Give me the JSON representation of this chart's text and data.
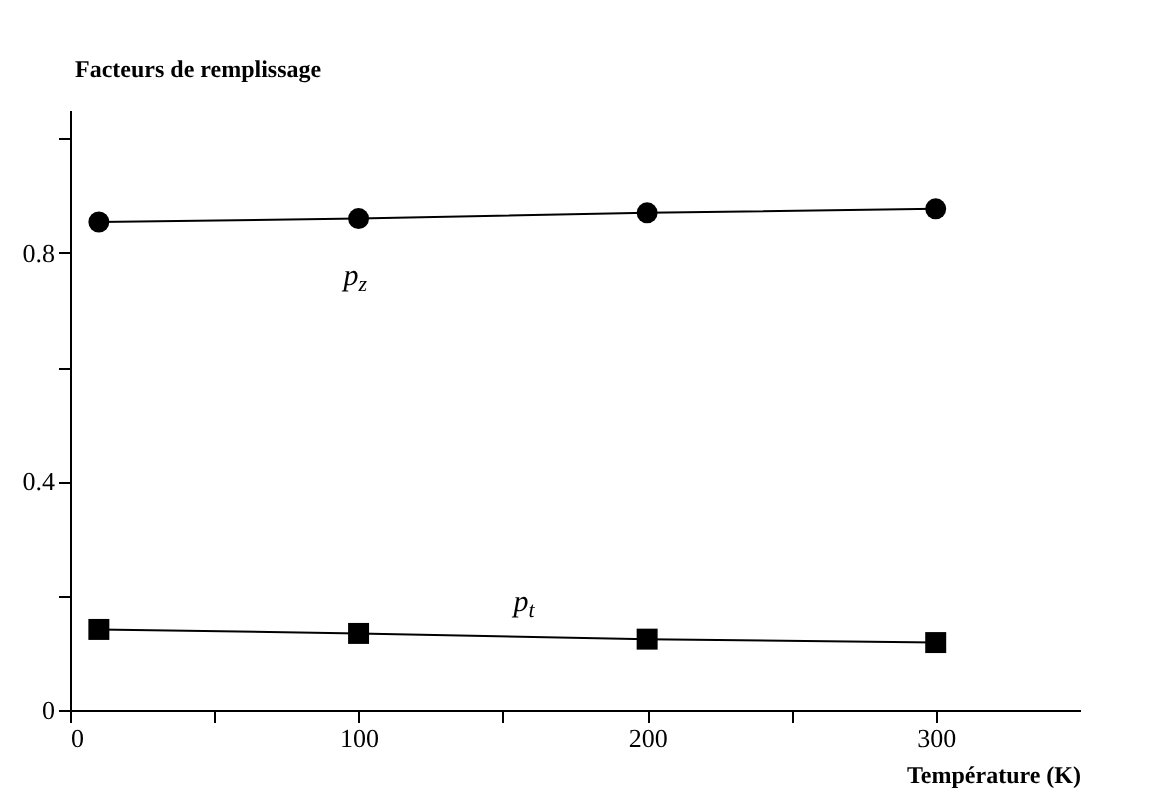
{
  "chart_data": {
    "type": "line",
    "xlabel": "Température (K)",
    "ylabel": "Facteurs de remplissage",
    "x": [
      10,
      100,
      200,
      300
    ],
    "series": [
      {
        "name": "p$_{z}$",
        "color": "#000000",
        "marker": "circle",
        "values": [
          0.854,
          0.86,
          0.87,
          0.877
        ]
      },
      {
        "name": "p$_{t}$",
        "color": "#000000",
        "marker": "square",
        "values": [
          0.141,
          0.134,
          0.124,
          0.118
        ]
      }
    ],
    "xlim": [
      0,
      350
    ],
    "ylim": [
      0,
      1.05
    ],
    "xticks": [
      0,
      {
        "value": 50,
        "label": null
      },
      100,
      {
        "value": 150,
        "label": null
      },
      200,
      {
        "value": 250,
        "label": null
      },
      300
    ],
    "yticks": [
      0,
      {
        "value": 0.2,
        "label": null
      },
      0.4,
      {
        "value": 0.6,
        "label": null
      },
      0.8,
      {
        "value": 1.0,
        "label": null
      }
    ],
    "grid": false,
    "line_style": "solid"
  }
}
